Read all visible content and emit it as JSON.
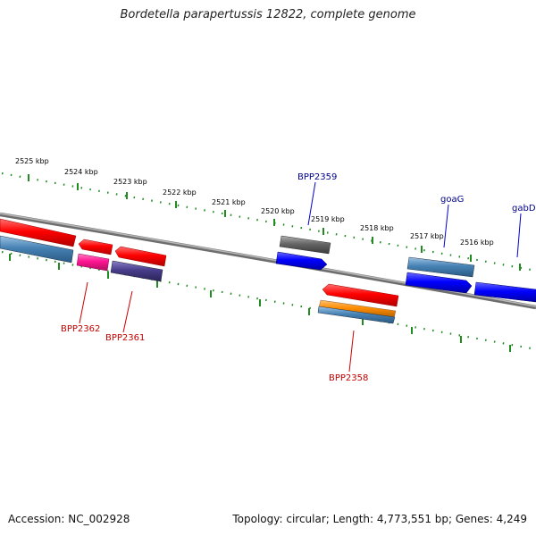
{
  "title": "Bordetella parapertussis 12822, complete genome",
  "accession": "Accession: NC_002928",
  "summary": "Topology: circular; Length: 4,773,551 bp; Genes: 4,249",
  "scale": {
    "kbp_labels": [
      "2525 kbp",
      "2524 kbp",
      "2523 kbp",
      "2522 kbp",
      "2521 kbp",
      "2520 kbp",
      "2519 kbp",
      "2518 kbp",
      "2517 kbp",
      "2516 kbp"
    ]
  },
  "genes": {
    "labeled": [
      {
        "name": "BPP2359",
        "color": "#00008b"
      },
      {
        "name": "goaG",
        "color": "#00008b"
      },
      {
        "name": "gabD",
        "color": "#00008b"
      },
      {
        "name": "BPP2362",
        "color": "#c00000"
      },
      {
        "name": "BPP2361",
        "color": "#c00000"
      },
      {
        "name": "BPP2358",
        "color": "#c00000"
      }
    ],
    "feature_colors": {
      "red": "#ff0000",
      "steelblue": "#4682b4",
      "magenta": "#ff1493",
      "darkslate": "#483d8b",
      "gray": "#666666",
      "blue": "#0000ff",
      "orange": "#ff8c00"
    }
  },
  "colors": {
    "backbone": "#808080",
    "ticks": "#228b22"
  }
}
